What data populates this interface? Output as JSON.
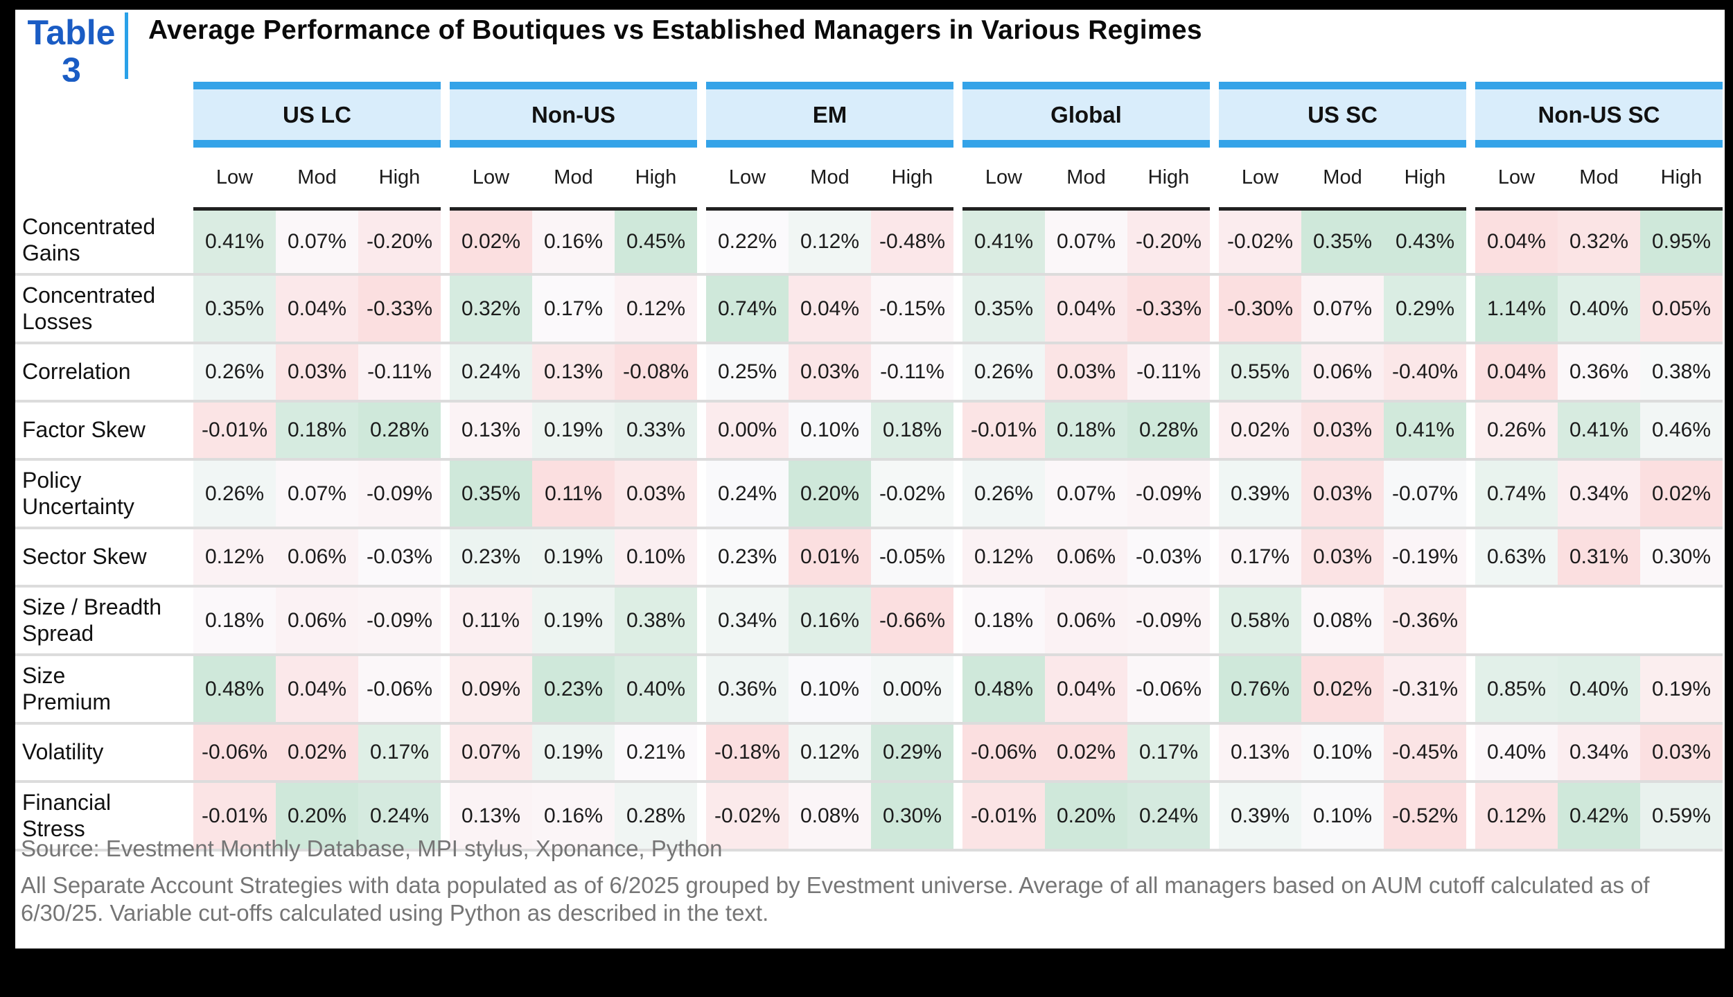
{
  "table_tag": {
    "label": "Table",
    "number": "3"
  },
  "footer": {
    "source": "Source: Evestment Monthly Database, MPI stylus, Xponance, Python",
    "note": "All Separate Account Strategies with data populated as of 6/2025 grouped by Evestment universe. Average of all managers based on AUM cutoff calculated as of 6/30/25. Variable cut-offs calculated using Python as described in the text."
  },
  "colors": {
    "tag_blue": "#1a5cc4",
    "bar_border_blue": "#34a3e8",
    "bar_fill_blue": "#d9edfb",
    "heat_negative_pink": "#fbdfe0",
    "heat_neutral_white": "#fbfafc",
    "heat_positive_green": "#cfe8da",
    "row_separator_gray": "#dcdcdc",
    "header_rule_dark": "#202020",
    "footer_gray": "#757575"
  },
  "chart_data": {
    "type": "heatmap",
    "title": "Average Performance of Boutiques vs Established Managers in Various Regimes",
    "groups": [
      "US LC",
      "Non-US",
      "EM",
      "Global",
      "US SC",
      "Non-US SC"
    ],
    "regimes": [
      "Low",
      "Mod",
      "High"
    ],
    "value_format": "percent_2dp",
    "colorscale_note": "diverging red-white-green scaled within each column",
    "rows": [
      {
        "label": "Concentrated\nGains",
        "values": [
          0.41,
          0.07,
          -0.2,
          0.02,
          0.16,
          0.45,
          0.22,
          0.12,
          -0.48,
          0.41,
          0.07,
          -0.2,
          -0.02,
          0.35,
          0.43,
          0.04,
          0.32,
          0.95
        ]
      },
      {
        "label": "Concentrated\nLosses",
        "values": [
          0.35,
          0.04,
          -0.33,
          0.32,
          0.17,
          0.12,
          0.74,
          0.04,
          -0.15,
          0.35,
          0.04,
          -0.33,
          -0.3,
          0.07,
          0.29,
          1.14,
          0.4,
          0.05
        ]
      },
      {
        "label": "Correlation",
        "values": [
          0.26,
          0.03,
          -0.11,
          0.24,
          0.13,
          -0.08,
          0.25,
          0.03,
          -0.11,
          0.26,
          0.03,
          -0.11,
          0.55,
          0.06,
          -0.4,
          0.04,
          0.36,
          0.38
        ]
      },
      {
        "label": "Factor Skew",
        "values": [
          -0.01,
          0.18,
          0.28,
          0.13,
          0.19,
          0.33,
          0.0,
          0.1,
          0.18,
          -0.01,
          0.18,
          0.28,
          0.02,
          0.03,
          0.41,
          0.26,
          0.41,
          0.46
        ]
      },
      {
        "label": "Policy\nUncertainty",
        "values": [
          0.26,
          0.07,
          -0.09,
          0.35,
          0.11,
          0.03,
          0.24,
          0.2,
          -0.02,
          0.26,
          0.07,
          -0.09,
          0.39,
          0.03,
          -0.07,
          0.74,
          0.34,
          0.02
        ]
      },
      {
        "label": "Sector Skew",
        "values": [
          0.12,
          0.06,
          -0.03,
          0.23,
          0.19,
          0.1,
          0.23,
          0.01,
          -0.05,
          0.12,
          0.06,
          -0.03,
          0.17,
          0.03,
          -0.19,
          0.63,
          0.31,
          0.3
        ]
      },
      {
        "label": "Size / Breadth\nSpread",
        "values": [
          0.18,
          0.06,
          -0.09,
          0.11,
          0.19,
          0.38,
          0.34,
          0.16,
          -0.66,
          0.18,
          0.06,
          -0.09,
          0.58,
          0.08,
          -0.36,
          null,
          null,
          null
        ]
      },
      {
        "label": "Size\nPremium",
        "values": [
          0.48,
          0.04,
          -0.06,
          0.09,
          0.23,
          0.4,
          0.36,
          0.1,
          0.0,
          0.48,
          0.04,
          -0.06,
          0.76,
          0.02,
          -0.31,
          0.85,
          0.4,
          0.19
        ]
      },
      {
        "label": "Volatility",
        "values": [
          -0.06,
          0.02,
          0.17,
          0.07,
          0.19,
          0.21,
          -0.18,
          0.12,
          0.29,
          -0.06,
          0.02,
          0.17,
          0.13,
          0.1,
          -0.45,
          0.4,
          0.34,
          0.03
        ]
      },
      {
        "label": "Financial\nStress",
        "values": [
          -0.01,
          0.2,
          0.24,
          0.13,
          0.16,
          0.28,
          -0.02,
          0.08,
          0.3,
          -0.01,
          0.2,
          0.24,
          0.39,
          0.1,
          -0.52,
          0.12,
          0.42,
          0.59
        ]
      }
    ]
  }
}
